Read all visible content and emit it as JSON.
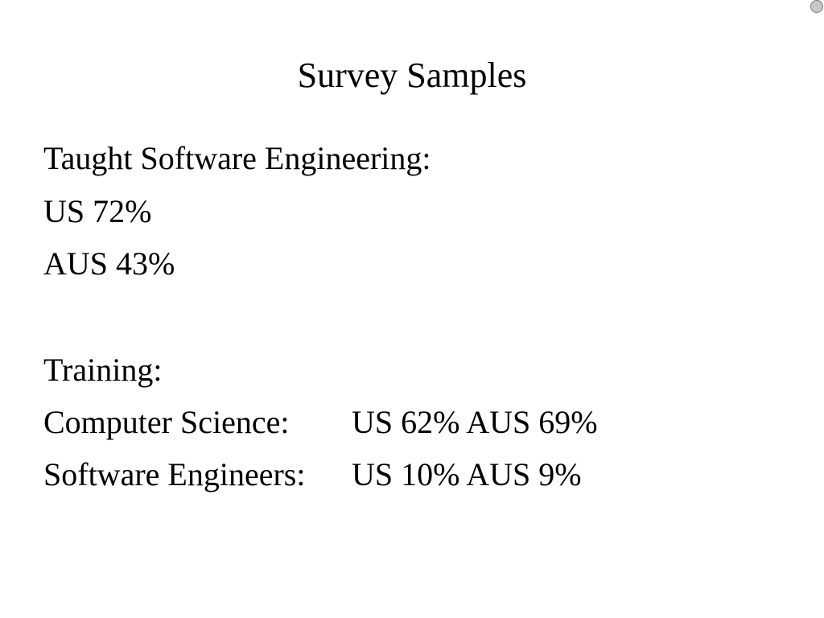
{
  "title": "Survey Samples",
  "sections": [
    {
      "heading": "Taught Software Engineering:",
      "lines": [
        "US 72%",
        "AUS 43%"
      ]
    },
    {
      "heading": "Training:",
      "rows": [
        {
          "label": "Computer Science:",
          "value": "US 62% AUS 69%"
        },
        {
          "label": "Software Engineers:",
          "value": "US 10% AUS 9%"
        }
      ]
    }
  ]
}
